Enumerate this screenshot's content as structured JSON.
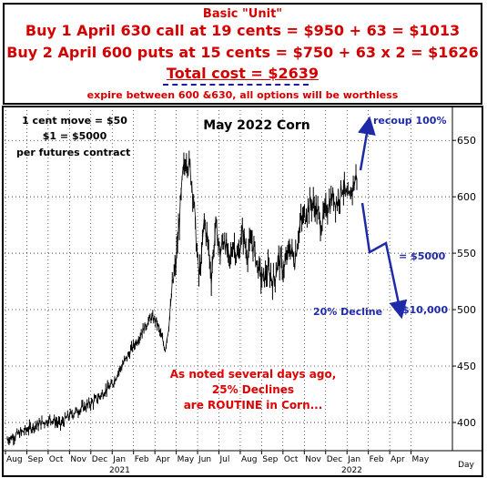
{
  "header": {
    "line1": "Basic \"Unit\"",
    "line2": "Buy 1 April 630 call at 19 cents = $950 + 63 = $1013",
    "line3": "Buy 2 April 600 puts at 15 cents = $750 + 63 x 2 = $1626",
    "line4": "Total cost = $2639",
    "line5": "expire between 600 &630, all options will be worthless"
  },
  "chart_data": {
    "type": "line",
    "title": "May 2022 Corn",
    "xlabel": "Day",
    "ylabel": "",
    "ylim": [
      375,
      680
    ],
    "yticks": [
      400,
      450,
      500,
      550,
      600,
      650
    ],
    "xtick_labels": [
      "Aug",
      "Sep",
      "Oct",
      "Nov",
      "Dec",
      "Jan",
      "Feb",
      "Apr",
      "May",
      "Jun",
      "Jul",
      "Aug",
      "Sep",
      "Oct",
      "Nov",
      "Dec",
      "Jan",
      "Feb",
      "Apr",
      "May"
    ],
    "year_labels": [
      "2021",
      "2022"
    ],
    "price_path": [
      {
        "x": 0,
        "y": 385
      },
      {
        "x": 8,
        "y": 388
      },
      {
        "x": 18,
        "y": 392
      },
      {
        "x": 28,
        "y": 396
      },
      {
        "x": 40,
        "y": 400
      },
      {
        "x": 50,
        "y": 403
      },
      {
        "x": 60,
        "y": 398
      },
      {
        "x": 68,
        "y": 405
      },
      {
        "x": 78,
        "y": 410
      },
      {
        "x": 90,
        "y": 415
      },
      {
        "x": 100,
        "y": 420
      },
      {
        "x": 110,
        "y": 428
      },
      {
        "x": 118,
        "y": 433
      },
      {
        "x": 125,
        "y": 445
      },
      {
        "x": 133,
        "y": 455
      },
      {
        "x": 140,
        "y": 465
      },
      {
        "x": 148,
        "y": 475
      },
      {
        "x": 155,
        "y": 485
      },
      {
        "x": 162,
        "y": 493
      },
      {
        "x": 168,
        "y": 490
      },
      {
        "x": 174,
        "y": 475
      },
      {
        "x": 178,
        "y": 465
      },
      {
        "x": 182,
        "y": 485
      },
      {
        "x": 186,
        "y": 520
      },
      {
        "x": 190,
        "y": 540
      },
      {
        "x": 194,
        "y": 580
      },
      {
        "x": 198,
        "y": 620
      },
      {
        "x": 202,
        "y": 635
      },
      {
        "x": 206,
        "y": 625
      },
      {
        "x": 210,
        "y": 600
      },
      {
        "x": 213,
        "y": 560
      },
      {
        "x": 216,
        "y": 530
      },
      {
        "x": 219,
        "y": 545
      },
      {
        "x": 222,
        "y": 580
      },
      {
        "x": 226,
        "y": 560
      },
      {
        "x": 230,
        "y": 530
      },
      {
        "x": 235,
        "y": 575
      },
      {
        "x": 240,
        "y": 550
      },
      {
        "x": 245,
        "y": 565
      },
      {
        "x": 250,
        "y": 540
      },
      {
        "x": 255,
        "y": 560
      },
      {
        "x": 260,
        "y": 545
      },
      {
        "x": 265,
        "y": 570
      },
      {
        "x": 270,
        "y": 550
      },
      {
        "x": 276,
        "y": 560
      },
      {
        "x": 282,
        "y": 540
      },
      {
        "x": 288,
        "y": 525
      },
      {
        "x": 294,
        "y": 535
      },
      {
        "x": 300,
        "y": 525
      },
      {
        "x": 306,
        "y": 545
      },
      {
        "x": 312,
        "y": 535
      },
      {
        "x": 318,
        "y": 555
      },
      {
        "x": 324,
        "y": 545
      },
      {
        "x": 330,
        "y": 575
      },
      {
        "x": 336,
        "y": 585
      },
      {
        "x": 342,
        "y": 595
      },
      {
        "x": 348,
        "y": 590
      },
      {
        "x": 354,
        "y": 575
      },
      {
        "x": 360,
        "y": 590
      },
      {
        "x": 366,
        "y": 600
      },
      {
        "x": 372,
        "y": 595
      },
      {
        "x": 378,
        "y": 610
      },
      {
        "x": 384,
        "y": 595
      },
      {
        "x": 390,
        "y": 610
      },
      {
        "x": 394,
        "y": 620
      }
    ],
    "annotations": {
      "contract_info": [
        "1 cent move = $50",
        "$1 = $5000",
        "per futures contract"
      ],
      "recoup": "recoup 100%",
      "five_k": "= $5000",
      "decline": "20% Decline",
      "ten_k": "$10,000",
      "note": [
        "As noted several days ago,",
        "25% Declines",
        "are ROUTINE in Corn..."
      ]
    }
  }
}
